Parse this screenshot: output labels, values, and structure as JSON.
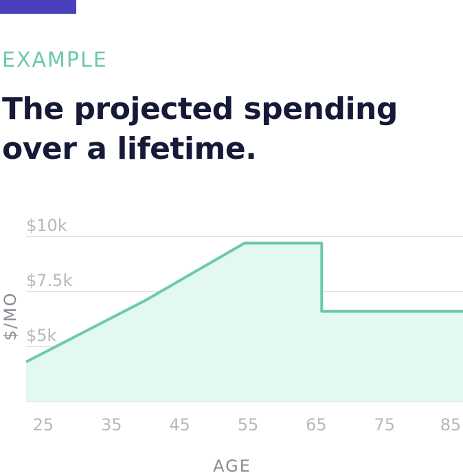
{
  "header": {
    "eyebrow": "EXAMPLE",
    "title_line1": "The projected spending",
    "title_line2": "over a lifetime."
  },
  "colors": {
    "accent_bar": "#4a3fbf",
    "eyebrow": "#6ccaa8",
    "title": "#161937",
    "line": "#6ccaa8",
    "area": "#e3f8ef",
    "grid": "#dcdcdc",
    "tick": "#b7b7bd"
  },
  "chart_data": {
    "type": "area",
    "xlabel": "AGE",
    "ylabel": "$/MO",
    "xlim": [
      22.5,
      86.5
    ],
    "ylim": [
      2500,
      10000
    ],
    "x_ticks": [
      25,
      35,
      45,
      55,
      65,
      75,
      85
    ],
    "x_tick_labels": [
      "25",
      "35",
      "45",
      "55",
      "65",
      "75",
      "85"
    ],
    "y_ticks": [
      5000,
      7500,
      10000
    ],
    "y_tick_labels": [
      "$5k",
      "$7.5k",
      "$10k"
    ],
    "grid": true,
    "series": [
      {
        "x": [
          22.5,
          40,
          54.5,
          65.8,
          65.8,
          86.5
        ],
        "y": [
          4300,
          7100,
          9700,
          9700,
          6600,
          6600
        ]
      }
    ]
  }
}
